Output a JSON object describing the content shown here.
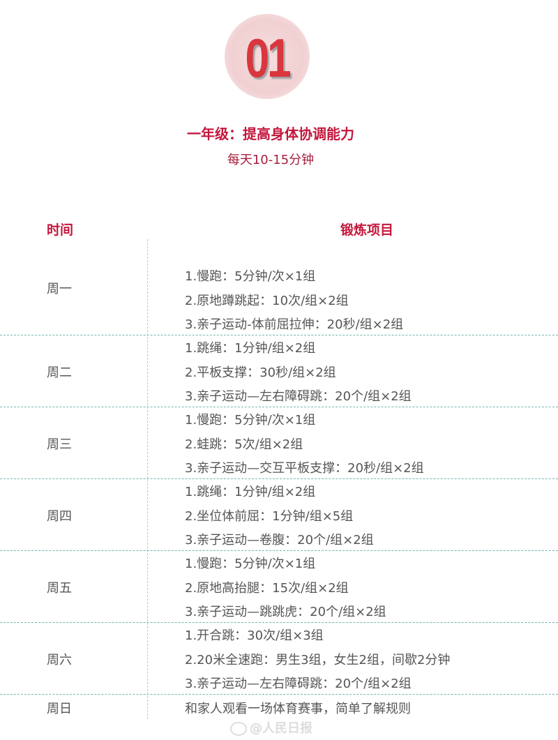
{
  "badge": {
    "number": "01"
  },
  "title": "一年级：提高身体协调能力",
  "subtitle": "每天10-15分钟",
  "table": {
    "headers": {
      "time": "时间",
      "exercise": "锻炼项目"
    },
    "rows": [
      {
        "day": "周一",
        "items": [
          "1.慢跑：5分钟/次×1组",
          "2.原地蹲跳起：10次/组×2组",
          "3.亲子运动-体前屈拉伸：20秒/组×2组"
        ]
      },
      {
        "day": "周二",
        "items": [
          "1.跳绳：1分钟/组×2组",
          "2.平板支撑：30秒/组×2组",
          "3.亲子运动—左右障碍跳：20个/组×2组"
        ]
      },
      {
        "day": "周三",
        "items": [
          "1.慢跑：5分钟/次×1组",
          "2.蛙跳：5次/组×2组",
          "3.亲子运动—交互平板支撑：20秒/组×2组"
        ]
      },
      {
        "day": "周四",
        "items": [
          "1.跳绳：1分钟/组×2组",
          "2.坐位体前屈：1分钟/组×5组",
          "3.亲子运动—卷腹：20个/组×2组"
        ]
      },
      {
        "day": "周五",
        "items": [
          "1.慢跑：5分钟/次×1组",
          "2.原地高抬腿：15次/组×2组",
          "3.亲子运动—跳跳虎：20个/组×2组"
        ]
      },
      {
        "day": "周六",
        "items": [
          "1.开合跳：30次/组×3组",
          "2.20米全速跑：男生3组，女生2组，间歇2分钟",
          "3.亲子运动—左右障碍跳：20个/组×2组"
        ]
      },
      {
        "day": "周日",
        "items": [
          "和家人观看一场体育赛事，简单了解规则"
        ]
      }
    ]
  },
  "watermark": "@人民日报",
  "colors": {
    "accent": "#c4173c",
    "text": "#555555",
    "separator": "#6fb8b0",
    "badge": "#d9363e"
  }
}
